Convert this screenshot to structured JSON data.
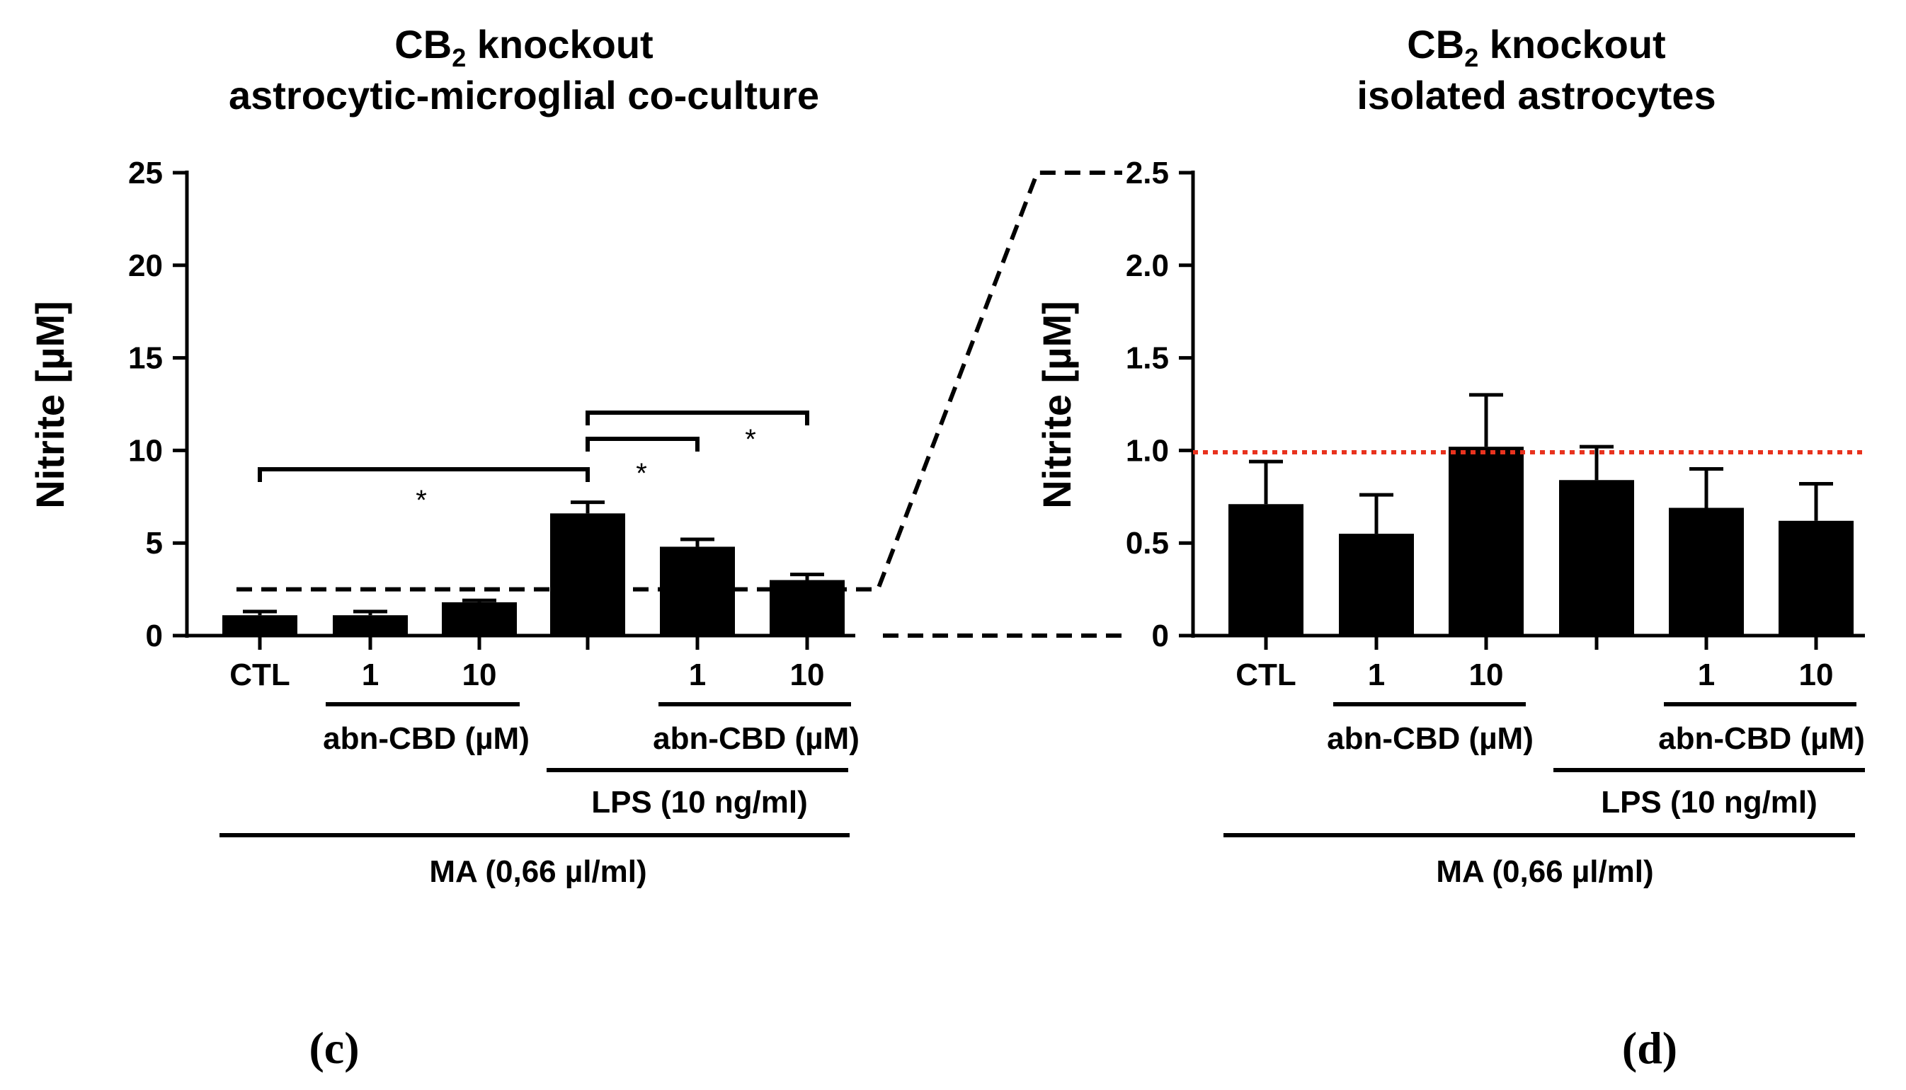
{
  "chart_data": [
    {
      "type": "bar",
      "panel_label": "(c)",
      "title": {
        "line1_prefix": "CB",
        "line1_sub": "2",
        "line1_suffix": " knockout",
        "line2": "astrocytic-microglial co-culture"
      },
      "ylabel": "Nitrite [µM]",
      "ylim": [
        0,
        25
      ],
      "yticks": [
        "0",
        "5",
        "10",
        "15",
        "20",
        "25"
      ],
      "categories": [
        "CTL",
        "1",
        "10",
        "",
        "1",
        "10"
      ],
      "values": [
        1.1,
        1.1,
        1.8,
        6.6,
        4.8,
        3.0
      ],
      "errors": [
        0.2,
        0.2,
        0.1,
        0.6,
        0.4,
        0.3
      ],
      "group_labels": {
        "abn1": "abn-CBD (µM)",
        "abn2": "abn-CBD (µM)",
        "lps": "LPS (10 ng/ml)",
        "ma": "MA (0,66 µl/ml)"
      },
      "significance": [
        {
          "from": 0,
          "to": 3,
          "label": "*"
        },
        {
          "from": 3,
          "to": 4,
          "label": "*"
        },
        {
          "from": 3,
          "to": 5,
          "label": "*"
        }
      ],
      "zoom_line_value": 2.5
    },
    {
      "type": "bar",
      "panel_label": "(d)",
      "title": {
        "line1_prefix": "CB",
        "line1_sub": "2",
        "line1_suffix": " knockout",
        "line2": "isolated astrocytes"
      },
      "ylabel": "Nitrite [µM]",
      "ylim": [
        0,
        2.5
      ],
      "yticks": [
        "0",
        "0.5",
        "1.0",
        "1.5",
        "2.0",
        "2.5"
      ],
      "categories": [
        "CTL",
        "1",
        "10",
        "",
        "1",
        "10"
      ],
      "values": [
        0.71,
        0.55,
        1.02,
        0.84,
        0.69,
        0.62
      ],
      "errors": [
        0.23,
        0.21,
        0.28,
        0.18,
        0.21,
        0.2
      ],
      "group_labels": {
        "abn1": "abn-CBD (µM)",
        "abn2": "abn-CBD (µM)",
        "lps": "LPS (10 ng/ml)",
        "ma": "MA (0,66 µl/ml)"
      },
      "reference_line": {
        "value": 0.99,
        "color": "#e8321e"
      }
    }
  ],
  "colors": {
    "bar": "#000000",
    "reference": "#e8321e"
  }
}
